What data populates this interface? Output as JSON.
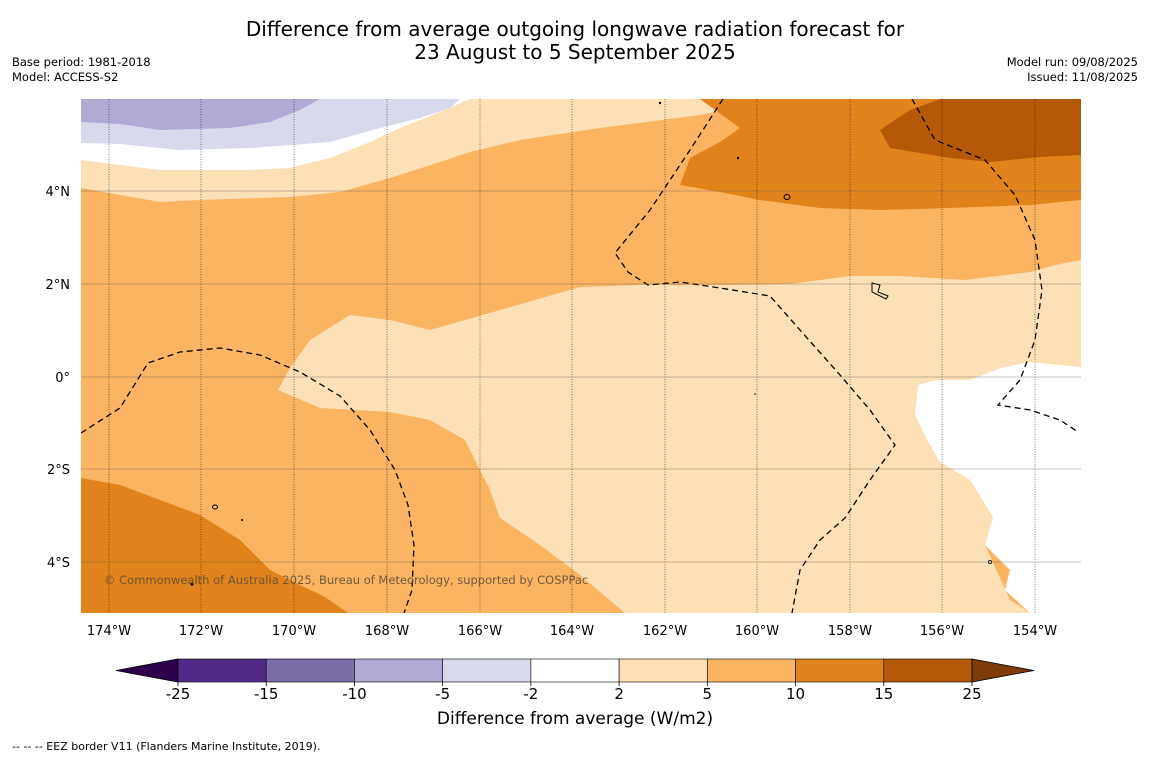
{
  "title_line1": "Difference from average outgoing longwave radiation forecast for",
  "title_line2": "23 August to 5 September 2025",
  "base_period": "Base period: 1981-2018",
  "model": "Model: ACCESS-S2",
  "model_run": "Model run: 09/08/2025",
  "issued": "Issued: 11/08/2025",
  "copyright": "© Commonwealth of Australia 2025, Bureau of Meteorology, supported by COSPPac",
  "lon_labels": [
    "174°W",
    "172°W",
    "170°W",
    "168°W",
    "166°W",
    "164°W",
    "162°W",
    "160°W",
    "158°W",
    "156°W",
    "154°W"
  ],
  "lat_labels": [
    "4°N",
    "2°N",
    "0°",
    "2°S",
    "4°S"
  ],
  "colorbar": {
    "ticks": [
      "-25",
      "-15",
      "-10",
      "-5",
      "-2",
      "2",
      "5",
      "10",
      "15",
      "25"
    ],
    "colors": [
      "#512a87",
      "#7b6da9",
      "#b1aad4",
      "#d9d9ec",
      "#ffffff",
      "#fde0b6",
      "#fbb462",
      "#e0831a",
      "#b35907"
    ],
    "under_color": "#2d004b",
    "over_color": "#7f3b08",
    "label": "Difference from average (W/m2)"
  },
  "legend_line": "--  --  -- EEZ border V11 (Flanders Marine Institute, 2019)."
}
